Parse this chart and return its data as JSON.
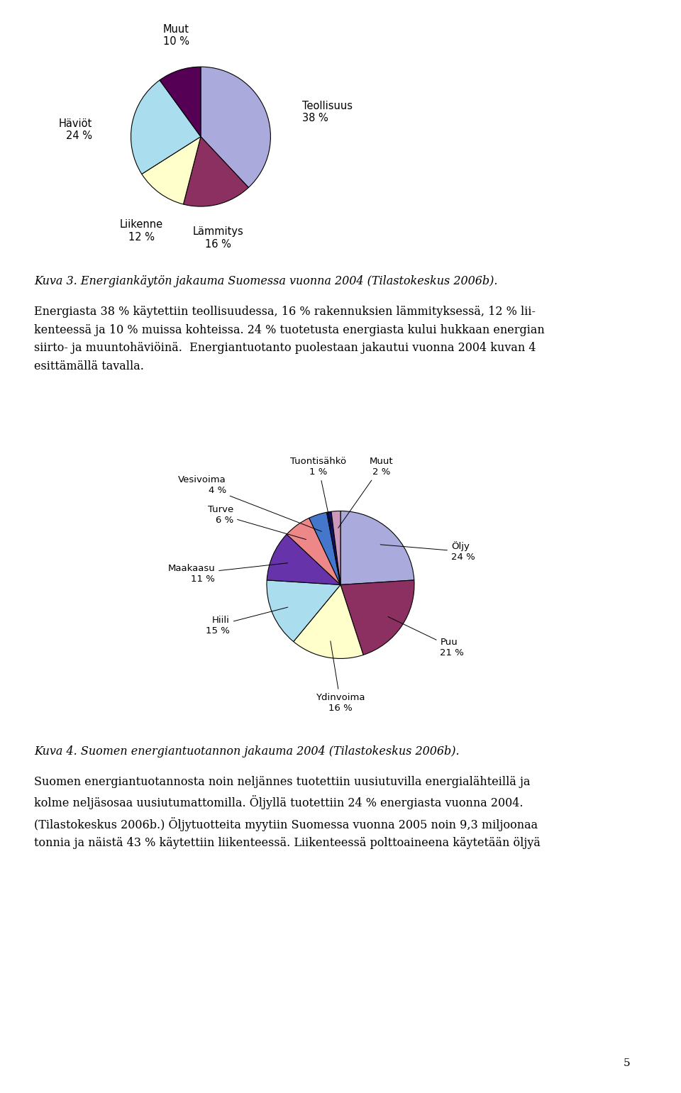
{
  "chart1": {
    "labels": [
      "Teollisuus",
      "Lämmitys",
      "Liikenne",
      "Häviöt",
      "Muut"
    ],
    "values": [
      38,
      16,
      12,
      24,
      10
    ],
    "colors": [
      "#aaaadd",
      "#8b3060",
      "#ffffcc",
      "#aaddee",
      "#550055"
    ],
    "startangle": 90,
    "counterclock": false
  },
  "chart2": {
    "labels": [
      "Öljy",
      "Puu",
      "Ydinvoima",
      "Hiili",
      "Maakaasu",
      "Turve",
      "Vesivoima",
      "Tuontisähkö",
      "Muut"
    ],
    "values": [
      24,
      21,
      16,
      15,
      11,
      6,
      4,
      1,
      2
    ],
    "colors": [
      "#aaaadd",
      "#8b3060",
      "#ffffcc",
      "#aaddee",
      "#6633aa",
      "#ee8888",
      "#4477cc",
      "#111166",
      "#cc99bb"
    ],
    "startangle": 90,
    "counterclock": false
  },
  "caption1": "Kuva 3. Energiankäytön jakauma Suomessa vuonna 2004 (Tilastokeskus 2006b).",
  "caption2": "Kuva 4. Suomen energiantuotannon jakauma 2004 (Tilastokeskus 2006b).",
  "body_text1": "Energiasta 38 % käytettiin teollisuudessa, 16 % rakennuksien lämmityksessä, 12 % lii-\nkenteessä ja 10 % muissa kohteissa. 24 % tuotetusta energiasta kului hukkaan energian\nsiirto- ja muuntohäviöinä.  Energiantuotanto puolestaan jakautui vuonna 2004 kuvan 4\nesittämällä tavalla.",
  "body_text2": "Suomen energiantuotannosta noin neljännes tuotettiin uusiutuvilla energialähteillä ja\nkolme neljäsosaa uusiutumattomilla. Öljyllä tuotettiin 24 % energiasta vuonna 2004.\n(Tilastokeskus 2006b.) Öljytuotteita myytiin Suomessa vuonna 2005 noin 9,3 miljoonaa\ntonnia ja näistä 43 % käytettiin liikenteessä. Liikenteessä polttoaineena käytetään öljyä",
  "page_number": "5",
  "bg_color": "#ffffff",
  "text_color": "#000000",
  "font_size_body": 11.5,
  "font_size_caption": 11.5
}
